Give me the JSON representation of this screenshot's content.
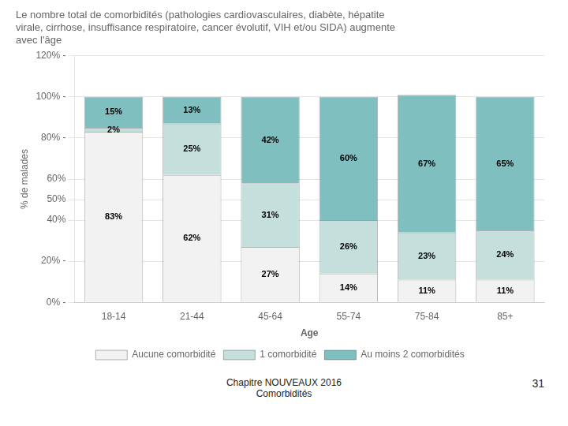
{
  "chart_data": {
    "type": "bar",
    "title": "Le nombre total de comorbidités (pathologies cardiovasculaires, diabète, hépatite\nvirale, cirrhose, insuffisance respiratoire, cancer évolutif, VIH et/ou SIDA) augmente\navec l'âge",
    "xlabel": "Age",
    "ylabel": "% de malades",
    "categories": [
      "18-14",
      "21-44",
      "45-64",
      "55-74",
      "75-84",
      "85+"
    ],
    "series": [
      {
        "name": "Aucune comorbidité",
        "color": "#f2f2f2",
        "values": [
          83,
          62,
          27,
          14,
          11,
          11
        ],
        "value_labels": [
          "83%",
          "62%",
          "27%",
          "14%",
          "11%",
          "11%"
        ]
      },
      {
        "name": "1 comorbidité",
        "color": "#c5e0dc",
        "values": [
          2,
          25,
          31,
          26,
          23,
          24
        ],
        "value_labels": [
          "2%",
          "25%",
          "31%",
          "26%",
          "23%",
          "24%"
        ]
      },
      {
        "name": "Au moins 2 comorbidités",
        "color": "#7fbfbf",
        "values": [
          15,
          13,
          42,
          60,
          67,
          65
        ],
        "value_labels": [
          "15%",
          "13%",
          "42%",
          "60%",
          "67%",
          "65%"
        ]
      }
    ],
    "stacked": true,
    "data_labels": true,
    "ylim": [
      0,
      120
    ],
    "yticks": [
      {
        "value": 0,
        "label": "0% -"
      },
      {
        "value": 20,
        "label": "20% -"
      },
      {
        "value": 40,
        "label": "40%"
      },
      {
        "value": 50,
        "label": "50%"
      },
      {
        "value": 60,
        "label": "60%"
      },
      {
        "value": 80,
        "label": "80% -"
      },
      {
        "value": 100,
        "label": "100% -"
      },
      {
        "value": 120,
        "label": "120% -"
      }
    ],
    "grid": true,
    "legend": "bottom",
    "annotations": [
      "Chapitre NOUVEAUX 2016\nComorbidités",
      "31"
    ]
  }
}
